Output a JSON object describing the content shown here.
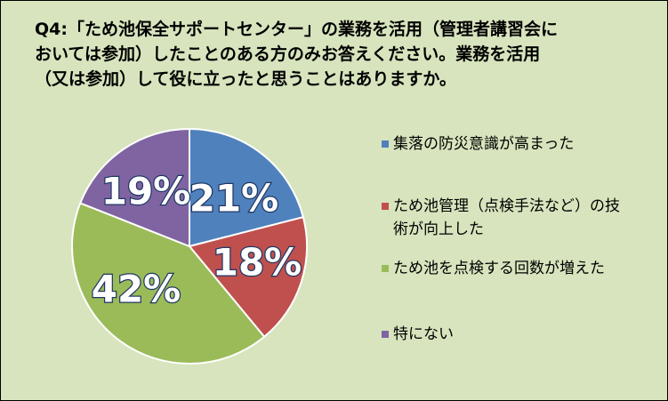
{
  "chart_data": {
    "type": "pie",
    "title": "Q4:「ため池保全サポートセンター」の業務を活用（管理者講習会においては参加）したことのある方のみお答えください。業務を活用（又は参加）して役に立ったと思うことはありますか。",
    "categories": [
      "集落の防災意識が高まった",
      "ため池管理（点検手法など）の技術が向上した",
      "ため池を点検する回数が増えた",
      "特にない"
    ],
    "values": [
      21,
      18,
      42,
      19
    ],
    "data_labels": [
      "21%",
      "18%",
      "42%",
      "19%"
    ],
    "colors": [
      "#4f81bd",
      "#c0504d",
      "#9bbb59",
      "#8064a2"
    ],
    "legend_position": "right"
  }
}
